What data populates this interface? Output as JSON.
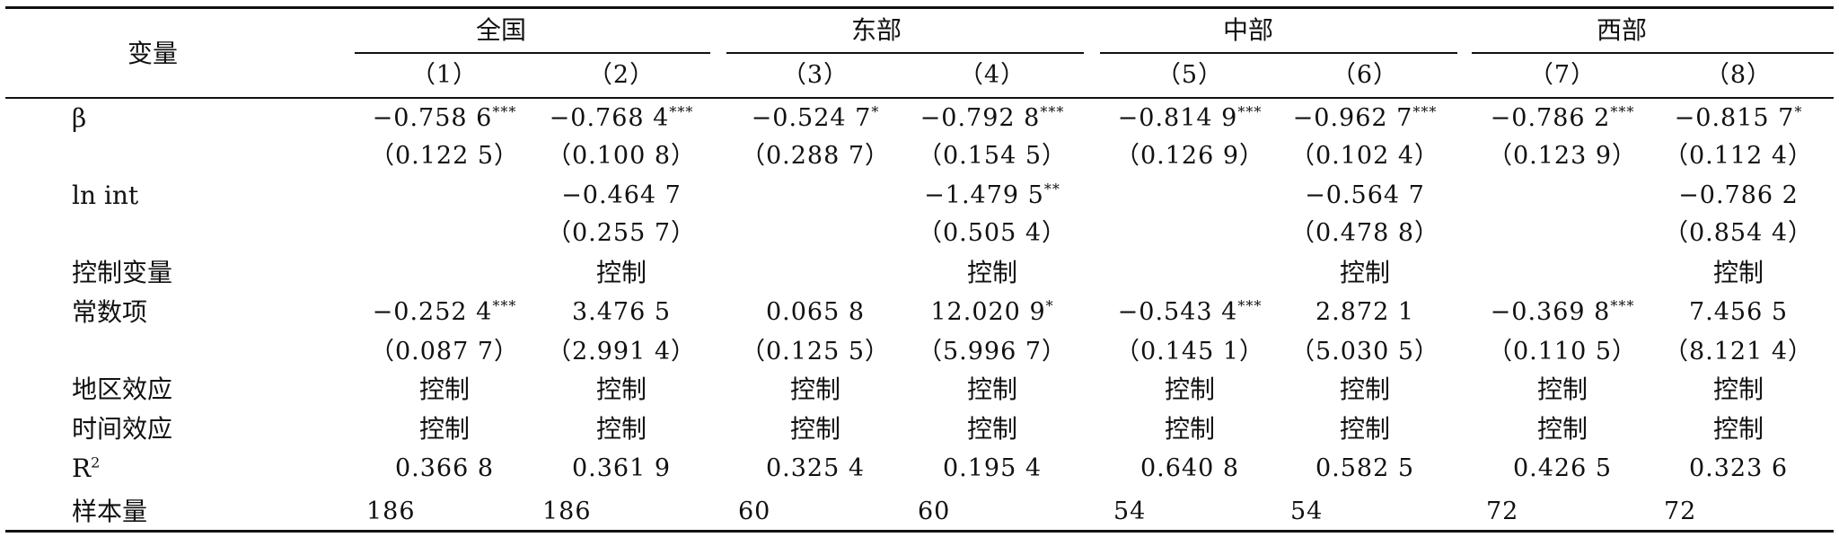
{
  "table": {
    "var_header": "变量",
    "groups": [
      "全国",
      "东部",
      "中部",
      "西部"
    ],
    "columns": [
      "（1）",
      "（2）",
      "（3）",
      "（4）",
      "（5）",
      "（6）",
      "（7）",
      "（8）"
    ],
    "rows": [
      {
        "label": "β",
        "cells": [
          "−0.758 6",
          "−0.768 4",
          "−0.524 7",
          "−0.792 8",
          "−0.814 9",
          "−0.962 7",
          "−0.786 2",
          "−0.815 7"
        ],
        "stars": [
          "***",
          "***",
          "*",
          "***",
          "***",
          "***",
          "***",
          "*"
        ]
      },
      {
        "label": "",
        "cells": [
          "（0.122 5）",
          "（0.100 8）",
          "（0.288 7）",
          "（0.154 5）",
          "（0.126 9）",
          "（0.102 4）",
          "（0.123 9）",
          "（0.112 4）"
        ],
        "stars": [
          "",
          "",
          "",
          "",
          "",
          "",
          "",
          ""
        ]
      },
      {
        "label": "ln int",
        "cells": [
          "",
          "−0.464 7",
          "",
          "−1.479 5",
          "",
          "−0.564 7",
          "",
          "−0.786 2"
        ],
        "stars": [
          "",
          "",
          "",
          "**",
          "",
          "",
          "",
          ""
        ]
      },
      {
        "label": "",
        "cells": [
          "",
          "（0.255 7）",
          "",
          "（0.505 4）",
          "",
          "（0.478 8）",
          "",
          "（0.854 4）"
        ],
        "stars": [
          "",
          "",
          "",
          "",
          "",
          "",
          "",
          ""
        ]
      },
      {
        "label": "控制变量",
        "cells": [
          "",
          "控制",
          "",
          "控制",
          "",
          "控制",
          "",
          "控制"
        ],
        "stars": [
          "",
          "",
          "",
          "",
          "",
          "",
          "",
          ""
        ]
      },
      {
        "label": "常数项",
        "cells": [
          "−0.252 4",
          "3.476 5",
          "0.065 8",
          "12.020 9",
          "−0.543 4",
          "2.872 1",
          "−0.369 8",
          "7.456 5"
        ],
        "stars": [
          "***",
          "",
          "",
          "*",
          "***",
          "",
          "***",
          ""
        ]
      },
      {
        "label": "",
        "cells": [
          "（0.087 7）",
          "（2.991 4）",
          "（0.125 5）",
          "（5.996 7）",
          "（0.145 1）",
          "（5.030 5）",
          "（0.110 5）",
          "（8.121 4）"
        ],
        "stars": [
          "",
          "",
          "",
          "",
          "",
          "",
          "",
          ""
        ]
      },
      {
        "label": "地区效应",
        "cells": [
          "控制",
          "控制",
          "控制",
          "控制",
          "控制",
          "控制",
          "控制",
          "控制"
        ],
        "stars": [
          "",
          "",
          "",
          "",
          "",
          "",
          "",
          ""
        ]
      },
      {
        "label": "时间效应",
        "cells": [
          "控制",
          "控制",
          "控制",
          "控制",
          "控制",
          "控制",
          "控制",
          "控制"
        ],
        "stars": [
          "",
          "",
          "",
          "",
          "",
          "",
          "",
          ""
        ]
      },
      {
        "label": "R",
        "label_sup": "2",
        "cells": [
          "0.366 8",
          "0.361 9",
          "0.325 4",
          "0.195 4",
          "0.640 8",
          "0.582 5",
          "0.426 5",
          "0.323 6"
        ],
        "stars": [
          "",
          "",
          "",
          "",
          "",
          "",
          "",
          ""
        ]
      },
      {
        "label": "样本量",
        "cells": [
          "186",
          "186",
          "60",
          "60",
          "54",
          "54",
          "72",
          "72"
        ],
        "stars": [
          "",
          "",
          "",
          "",
          "",
          "",
          "",
          ""
        ]
      }
    ]
  }
}
